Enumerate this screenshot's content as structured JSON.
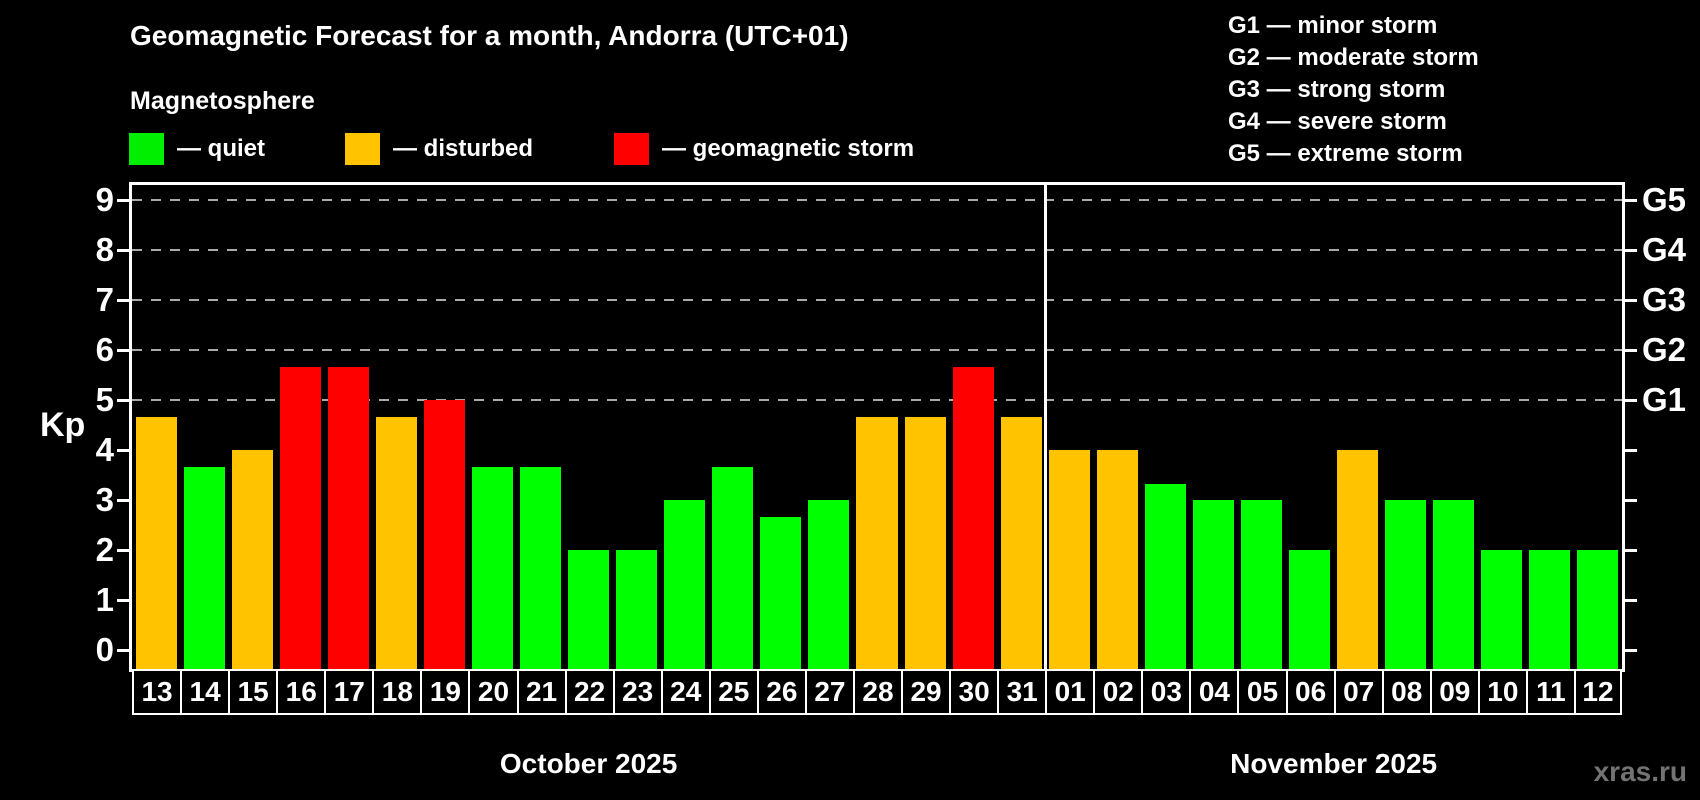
{
  "header": {
    "title": "Geomagnetic Forecast for a month, Andorra (UTC+01)",
    "subtitle": "Magnetosphere"
  },
  "legend": {
    "items": [
      {
        "key": "quiet",
        "label": "— quiet",
        "color": "#00ef00"
      },
      {
        "key": "disturbed",
        "label": "— disturbed",
        "color": "#ffc300"
      },
      {
        "key": "storm",
        "label": "— geomagnetic storm",
        "color": "#ff0000"
      }
    ]
  },
  "g_scale": [
    "G1 — minor storm",
    "G2 — moderate storm",
    "G3 — strong storm",
    "G4 — severe storm",
    "G5 — extreme storm"
  ],
  "watermark": "xras.ru",
  "chart_data": {
    "type": "bar",
    "title": "Geomagnetic Forecast for a month, Andorra (UTC+01)",
    "ylabel": "Kp",
    "ylim": [
      -0.38,
      9.38
    ],
    "y_ticks": [
      0,
      1,
      2,
      3,
      4,
      5,
      6,
      7,
      8,
      9
    ],
    "gridlines": [
      5,
      6,
      7,
      8,
      9
    ],
    "grid_on": true,
    "right_axis": [
      {
        "kp": 5,
        "label": "G1"
      },
      {
        "kp": 6,
        "label": "G2"
      },
      {
        "kp": 7,
        "label": "G3"
      },
      {
        "kp": 8,
        "label": "G4"
      },
      {
        "kp": 9,
        "label": "G5"
      }
    ],
    "colors": {
      "quiet": "#00ff00",
      "disturbed": "#ffc300",
      "storm": "#ff0000",
      "grid": "#aaaaaa",
      "frame": "#ffffff"
    },
    "months": [
      {
        "label": "October 2025",
        "days": [
          {
            "day": "13",
            "kp": 4.67,
            "level": "disturbed"
          },
          {
            "day": "14",
            "kp": 3.67,
            "level": "quiet"
          },
          {
            "day": "15",
            "kp": 4.0,
            "level": "disturbed"
          },
          {
            "day": "16",
            "kp": 5.67,
            "level": "storm"
          },
          {
            "day": "17",
            "kp": 5.67,
            "level": "storm"
          },
          {
            "day": "18",
            "kp": 4.67,
            "level": "disturbed"
          },
          {
            "day": "19",
            "kp": 5.0,
            "level": "storm"
          },
          {
            "day": "20",
            "kp": 3.67,
            "level": "quiet"
          },
          {
            "day": "21",
            "kp": 3.67,
            "level": "quiet"
          },
          {
            "day": "22",
            "kp": 2.0,
            "level": "quiet"
          },
          {
            "day": "23",
            "kp": 2.0,
            "level": "quiet"
          },
          {
            "day": "24",
            "kp": 3.0,
            "level": "quiet"
          },
          {
            "day": "25",
            "kp": 3.67,
            "level": "quiet"
          },
          {
            "day": "26",
            "kp": 2.67,
            "level": "quiet"
          },
          {
            "day": "27",
            "kp": 3.0,
            "level": "quiet"
          },
          {
            "day": "28",
            "kp": 4.67,
            "level": "disturbed"
          },
          {
            "day": "29",
            "kp": 4.67,
            "level": "disturbed"
          },
          {
            "day": "30",
            "kp": 5.67,
            "level": "storm"
          },
          {
            "day": "31",
            "kp": 4.67,
            "level": "disturbed"
          }
        ]
      },
      {
        "label": "November 2025",
        "days": [
          {
            "day": "01",
            "kp": 4.0,
            "level": "disturbed"
          },
          {
            "day": "02",
            "kp": 4.0,
            "level": "disturbed"
          },
          {
            "day": "03",
            "kp": 3.33,
            "level": "quiet"
          },
          {
            "day": "04",
            "kp": 3.0,
            "level": "quiet"
          },
          {
            "day": "05",
            "kp": 3.0,
            "level": "quiet"
          },
          {
            "day": "06",
            "kp": 2.0,
            "level": "quiet"
          },
          {
            "day": "07",
            "kp": 4.0,
            "level": "disturbed"
          },
          {
            "day": "08",
            "kp": 3.0,
            "level": "quiet"
          },
          {
            "day": "09",
            "kp": 3.0,
            "level": "quiet"
          },
          {
            "day": "10",
            "kp": 2.0,
            "level": "quiet"
          },
          {
            "day": "11",
            "kp": 2.0,
            "level": "quiet"
          },
          {
            "day": "12",
            "kp": 2.0,
            "level": "quiet"
          }
        ]
      }
    ]
  }
}
